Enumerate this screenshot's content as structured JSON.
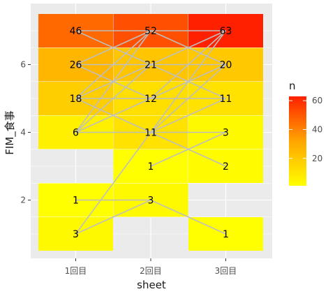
{
  "chart_data": {
    "type": "heatmap",
    "xlabel": "sheet",
    "ylabel": "FIM_食事",
    "x_categories": [
      "1回目",
      "2回目",
      "3回目"
    ],
    "y_ticks": [
      2,
      4,
      6
    ],
    "ylim": [
      0.5,
      7.5
    ],
    "grid": true,
    "legend": {
      "title": "n",
      "placement": "right",
      "ticks": [
        20,
        40,
        60
      ],
      "range": [
        1,
        63
      ],
      "low_color": "#FFFF00",
      "high_color": "#FF2000"
    },
    "cells": [
      {
        "x": "1回目",
        "y": 1,
        "n": 3
      },
      {
        "x": "1回目",
        "y": 2,
        "n": 1
      },
      {
        "x": "1回目",
        "y": 4,
        "n": 6
      },
      {
        "x": "1回目",
        "y": 5,
        "n": 18
      },
      {
        "x": "1回目",
        "y": 6,
        "n": 26
      },
      {
        "x": "1回目",
        "y": 7,
        "n": 46
      },
      {
        "x": "2回目",
        "y": 2,
        "n": 3
      },
      {
        "x": "2回目",
        "y": 3,
        "n": 1
      },
      {
        "x": "2回目",
        "y": 4,
        "n": 11
      },
      {
        "x": "2回目",
        "y": 5,
        "n": 12
      },
      {
        "x": "2回目",
        "y": 6,
        "n": 21
      },
      {
        "x": "2回目",
        "y": 7,
        "n": 52
      },
      {
        "x": "3回目",
        "y": 1,
        "n": 1
      },
      {
        "x": "3回目",
        "y": 3,
        "n": 2
      },
      {
        "x": "3回目",
        "y": 4,
        "n": 3
      },
      {
        "x": "3回目",
        "y": 5,
        "n": 11
      },
      {
        "x": "3回目",
        "y": 6,
        "n": 20
      },
      {
        "x": "3回目",
        "y": 7,
        "n": 63
      }
    ],
    "transitions": [
      {
        "from": [
          "1回目",
          1
        ],
        "to": [
          "2回目",
          2
        ]
      },
      {
        "from": [
          "1回目",
          1
        ],
        "to": [
          "2回目",
          4
        ]
      },
      {
        "from": [
          "1回目",
          2
        ],
        "to": [
          "2回目",
          2
        ]
      },
      {
        "from": [
          "1回目",
          4
        ],
        "to": [
          "2回目",
          4
        ]
      },
      {
        "from": [
          "1回目",
          4
        ],
        "to": [
          "2回目",
          5
        ]
      },
      {
        "from": [
          "1回目",
          4
        ],
        "to": [
          "2回目",
          6
        ]
      },
      {
        "from": [
          "1回目",
          4
        ],
        "to": [
          "2回目",
          7
        ]
      },
      {
        "from": [
          "1回目",
          5
        ],
        "to": [
          "2回目",
          4
        ]
      },
      {
        "from": [
          "1回目",
          5
        ],
        "to": [
          "2回目",
          5
        ]
      },
      {
        "from": [
          "1回目",
          5
        ],
        "to": [
          "2回目",
          6
        ]
      },
      {
        "from": [
          "1回目",
          5
        ],
        "to": [
          "2回目",
          7
        ]
      },
      {
        "from": [
          "1回目",
          6
        ],
        "to": [
          "2回目",
          5
        ]
      },
      {
        "from": [
          "1回目",
          6
        ],
        "to": [
          "2回目",
          6
        ]
      },
      {
        "from": [
          "1回目",
          6
        ],
        "to": [
          "2回目",
          7
        ]
      },
      {
        "from": [
          "1回目",
          7
        ],
        "to": [
          "2回目",
          6
        ]
      },
      {
        "from": [
          "1回目",
          7
        ],
        "to": [
          "2回目",
          7
        ]
      },
      {
        "from": [
          "2回目",
          2
        ],
        "to": [
          "3回目",
          1
        ]
      },
      {
        "from": [
          "2回目",
          3
        ],
        "to": [
          "3回目",
          4
        ]
      },
      {
        "from": [
          "2回目",
          4
        ],
        "to": [
          "3回目",
          3
        ]
      },
      {
        "from": [
          "2回目",
          4
        ],
        "to": [
          "3回目",
          4
        ]
      },
      {
        "from": [
          "2回目",
          4
        ],
        "to": [
          "3回目",
          5
        ]
      },
      {
        "from": [
          "2回目",
          4
        ],
        "to": [
          "3回目",
          6
        ]
      },
      {
        "from": [
          "2回目",
          4
        ],
        "to": [
          "3回目",
          7
        ]
      },
      {
        "from": [
          "2回目",
          5
        ],
        "to": [
          "3回目",
          5
        ]
      },
      {
        "from": [
          "2回目",
          5
        ],
        "to": [
          "3回目",
          6
        ]
      },
      {
        "from": [
          "2回目",
          5
        ],
        "to": [
          "3回目",
          7
        ]
      },
      {
        "from": [
          "2回目",
          6
        ],
        "to": [
          "3回目",
          5
        ]
      },
      {
        "from": [
          "2回目",
          6
        ],
        "to": [
          "3回目",
          6
        ]
      },
      {
        "from": [
          "2回目",
          6
        ],
        "to": [
          "3回目",
          7
        ]
      },
      {
        "from": [
          "2回目",
          7
        ],
        "to": [
          "3回目",
          6
        ]
      },
      {
        "from": [
          "2回目",
          7
        ],
        "to": [
          "3回目",
          7
        ]
      }
    ]
  }
}
